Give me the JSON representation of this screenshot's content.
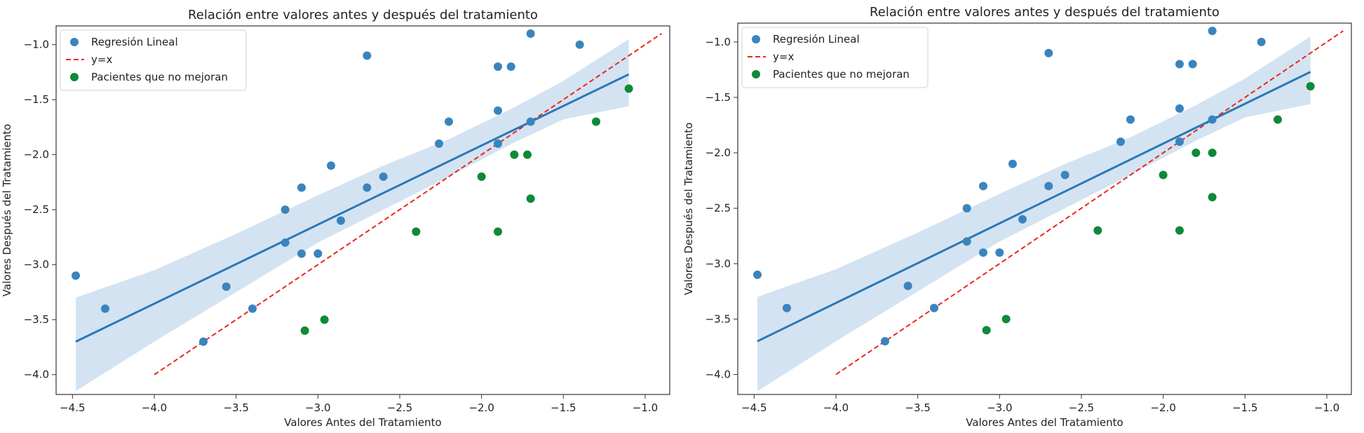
{
  "chart_data": [
    {
      "type": "scatter",
      "title": "Relación entre valores antes y después del tratamiento",
      "xlabel": "Valores Antes del Tratamiento",
      "ylabel": "Valores Después del Tratamiento",
      "xlim": [
        -4.6,
        -0.85
      ],
      "ylim": [
        -4.18,
        -0.83
      ],
      "xticks": [
        "−4.5",
        "−4.0",
        "−3.5",
        "−3.0",
        "−2.5",
        "−2.0",
        "−1.5",
        "−1.0"
      ],
      "xtick_values": [
        -4.5,
        -4.0,
        -3.5,
        -3.0,
        -2.5,
        -2.0,
        -1.5,
        -1.0
      ],
      "yticks": [
        "−1.0",
        "−1.5",
        "−2.0",
        "−2.5",
        "−3.0",
        "−3.5",
        "−4.0"
      ],
      "ytick_values": [
        -1.0,
        -1.5,
        -2.0,
        -2.5,
        -3.0,
        -3.5,
        -4.0
      ],
      "grid": false,
      "legend_position": "top-left",
      "legend": [
        "Regresión Lineal",
        "y=x",
        "Pacientes que no mejoran"
      ],
      "colors": {
        "points": "#3a84be",
        "regression": "#2a78b8",
        "ci_band": "#c6d9ec",
        "identity": "#e8291c",
        "no_improve": "#0e8a36"
      },
      "series": [
        {
          "name": "Regresión Lineal",
          "points": [
            [
              -4.48,
              -3.1
            ],
            [
              -4.3,
              -3.4
            ],
            [
              -3.7,
              -3.7
            ],
            [
              -3.56,
              -3.2
            ],
            [
              -3.4,
              -3.4
            ],
            [
              -3.2,
              -2.8
            ],
            [
              -3.2,
              -2.5
            ],
            [
              -3.1,
              -2.3
            ],
            [
              -3.1,
              -2.9
            ],
            [
              -3.0,
              -2.9
            ],
            [
              -2.92,
              -2.1
            ],
            [
              -2.86,
              -2.6
            ],
            [
              -2.7,
              -2.3
            ],
            [
              -2.7,
              -1.1
            ],
            [
              -2.6,
              -2.2
            ],
            [
              -2.26,
              -1.9
            ],
            [
              -2.2,
              -1.7
            ],
            [
              -1.9,
              -1.6
            ],
            [
              -1.9,
              -1.2
            ],
            [
              -1.9,
              -1.9
            ],
            [
              -1.82,
              -1.2
            ],
            [
              -1.7,
              -1.7
            ],
            [
              -1.7,
              -0.9
            ],
            [
              -1.4,
              -1.0
            ]
          ]
        },
        {
          "name": "Pacientes que no mejoran",
          "points": [
            [
              -3.08,
              -3.6
            ],
            [
              -2.96,
              -3.5
            ],
            [
              -2.4,
              -2.7
            ],
            [
              -2.0,
              -2.2
            ],
            [
              -1.9,
              -2.7
            ],
            [
              -1.8,
              -2.0
            ],
            [
              -1.72,
              -2.0
            ],
            [
              -1.7,
              -2.4
            ],
            [
              -1.3,
              -1.7
            ],
            [
              -1.1,
              -1.4
            ]
          ]
        }
      ],
      "regression": {
        "x": [
          -4.48,
          -1.1
        ],
        "y": [
          -3.7,
          -1.27
        ]
      },
      "ci_band": {
        "x": [
          -4.48,
          -4.0,
          -3.5,
          -3.0,
          -2.6,
          -2.2,
          -1.8,
          -1.5,
          -1.1
        ],
        "upper": [
          -3.3,
          -3.05,
          -2.72,
          -2.37,
          -2.1,
          -1.86,
          -1.57,
          -1.33,
          -0.95
        ],
        "lower": [
          -4.15,
          -3.7,
          -3.25,
          -2.8,
          -2.5,
          -2.2,
          -1.89,
          -1.68,
          -1.56
        ]
      },
      "identity_line": {
        "x": [
          -4.0,
          -0.9
        ],
        "y": [
          -4.0,
          -0.9
        ]
      }
    },
    {
      "type": "scatter",
      "title": "Relación entre valores antes y después del tratamiento",
      "xlabel": "Valores Antes del Tratamiento",
      "ylabel": "Valores Después del Tratamiento",
      "xlim": [
        -4.6,
        -0.85
      ],
      "ylim": [
        -4.18,
        -0.83
      ],
      "xticks": [
        "−4.5",
        "−4.0",
        "−3.5",
        "−3.0",
        "−2.5",
        "−2.0",
        "−1.5",
        "−1.0"
      ],
      "xtick_values": [
        -4.5,
        -4.0,
        -3.5,
        -3.0,
        -2.5,
        -2.0,
        -1.5,
        -1.0
      ],
      "yticks": [
        "−1.0",
        "−1.5",
        "−2.0",
        "−2.5",
        "−3.0",
        "−3.5",
        "−4.0"
      ],
      "ytick_values": [
        -1.0,
        -1.5,
        -2.0,
        -2.5,
        -3.0,
        -3.5,
        -4.0
      ],
      "grid": false,
      "legend_position": "top-left",
      "legend": [
        "Regresión Lineal",
        "y=x",
        "Pacientes que no mejoran"
      ],
      "colors": {
        "points": "#3a84be",
        "regression": "#2a78b8",
        "ci_band": "#c6d9ec",
        "identity": "#e8291c",
        "no_improve": "#0e8a36"
      },
      "series": [
        {
          "name": "Regresión Lineal",
          "points": [
            [
              -4.48,
              -3.1
            ],
            [
              -4.3,
              -3.4
            ],
            [
              -3.7,
              -3.7
            ],
            [
              -3.56,
              -3.2
            ],
            [
              -3.4,
              -3.4
            ],
            [
              -3.2,
              -2.8
            ],
            [
              -3.2,
              -2.5
            ],
            [
              -3.1,
              -2.3
            ],
            [
              -3.1,
              -2.9
            ],
            [
              -3.0,
              -2.9
            ],
            [
              -2.92,
              -2.1
            ],
            [
              -2.86,
              -2.6
            ],
            [
              -2.7,
              -2.3
            ],
            [
              -2.7,
              -1.1
            ],
            [
              -2.6,
              -2.2
            ],
            [
              -2.26,
              -1.9
            ],
            [
              -2.2,
              -1.7
            ],
            [
              -1.9,
              -1.6
            ],
            [
              -1.9,
              -1.2
            ],
            [
              -1.9,
              -1.9
            ],
            [
              -1.82,
              -1.2
            ],
            [
              -1.7,
              -1.7
            ],
            [
              -1.7,
              -0.9
            ],
            [
              -1.4,
              -1.0
            ]
          ]
        },
        {
          "name": "Pacientes que no mejoran",
          "points": [
            [
              -3.08,
              -3.6
            ],
            [
              -2.96,
              -3.5
            ],
            [
              -2.4,
              -2.7
            ],
            [
              -2.0,
              -2.2
            ],
            [
              -1.9,
              -2.7
            ],
            [
              -1.8,
              -2.0
            ],
            [
              -1.7,
              -2.0
            ],
            [
              -1.7,
              -2.4
            ],
            [
              -1.3,
              -1.7
            ],
            [
              -1.1,
              -1.4
            ]
          ]
        }
      ],
      "regression": {
        "x": [
          -4.48,
          -1.1
        ],
        "y": [
          -3.7,
          -1.27
        ]
      },
      "ci_band": {
        "x": [
          -4.48,
          -4.0,
          -3.5,
          -3.0,
          -2.6,
          -2.2,
          -1.8,
          -1.5,
          -1.1
        ],
        "upper": [
          -3.3,
          -3.05,
          -2.72,
          -2.37,
          -2.1,
          -1.86,
          -1.57,
          -1.33,
          -0.95
        ],
        "lower": [
          -4.15,
          -3.7,
          -3.25,
          -2.8,
          -2.5,
          -2.2,
          -1.89,
          -1.68,
          -1.56
        ]
      },
      "identity_line": {
        "x": [
          -4.0,
          -0.9
        ],
        "y": [
          -4.0,
          -0.9
        ]
      }
    }
  ]
}
